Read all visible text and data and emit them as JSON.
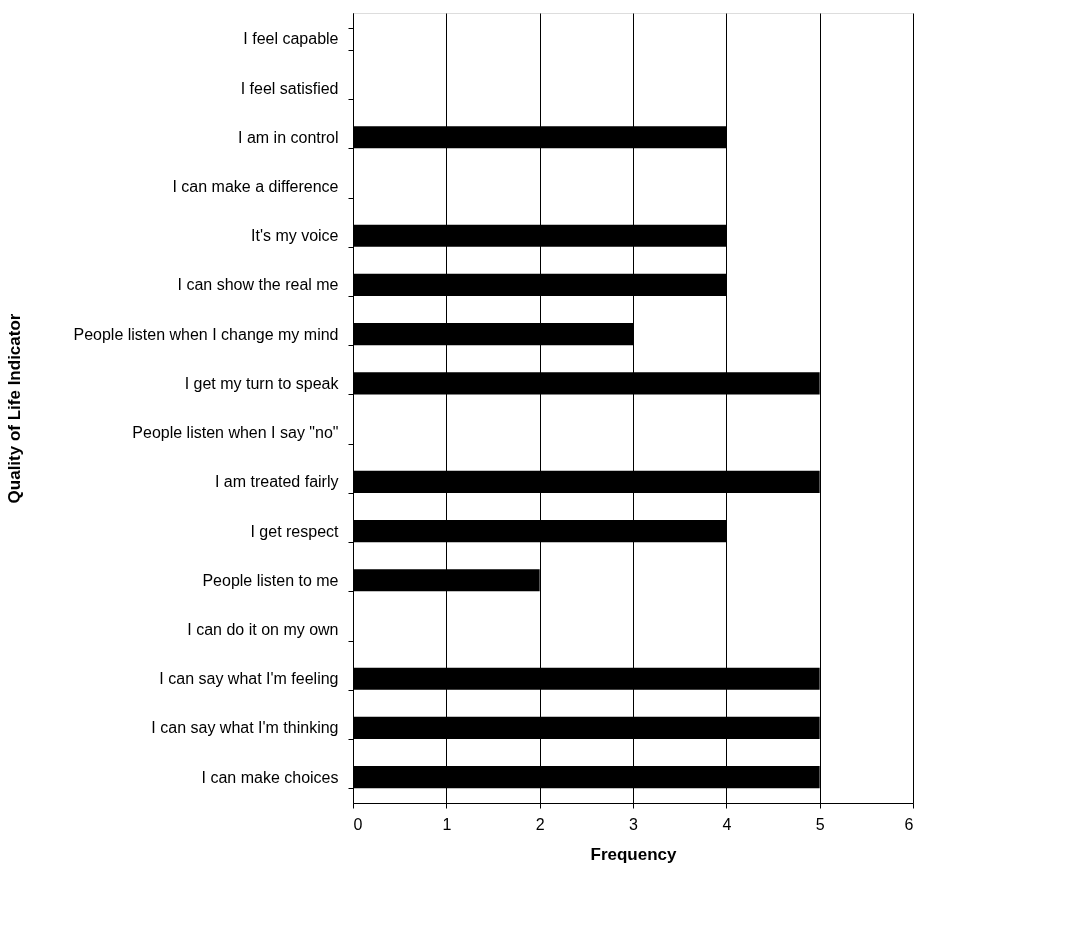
{
  "chart_data": {
    "type": "bar",
    "orientation": "horizontal",
    "xlabel": "Frequency",
    "ylabel": "Quality of Life Indicator",
    "categories": [
      "I feel capable",
      "I feel satisfied",
      "I am in control",
      "I can make a difference",
      "It's my voice",
      "I can show the real me",
      "People listen when I change my mind",
      "I get my turn to speak",
      "People listen when I say \"no\"",
      "I am treated fairly",
      "I get respect",
      "People listen to me",
      "I can do it on my own",
      "I can say what I'm feeling",
      "I can say what I'm thinking",
      "I can make choices"
    ],
    "values": [
      0,
      0,
      4,
      0,
      4,
      4,
      3,
      5,
      0,
      5,
      4,
      2,
      0,
      5,
      5,
      5
    ],
    "color": "#000000",
    "xlim": [
      0,
      6
    ],
    "xticks": [
      0,
      1,
      2,
      3,
      4,
      5,
      6
    ],
    "grid": "x"
  }
}
